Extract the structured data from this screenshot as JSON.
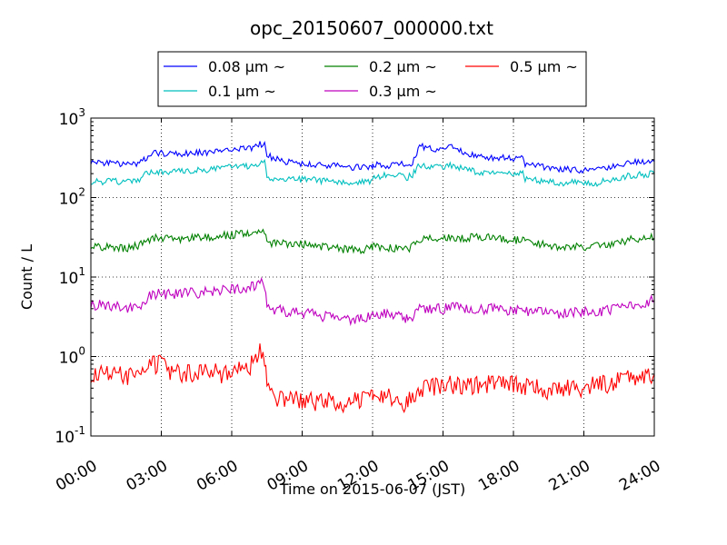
{
  "chart_data": {
    "type": "line",
    "title": "opc_20150607_000000.txt",
    "xlabel": "Time on 2015-06-07 (JST)",
    "ylabel": "Count / L",
    "x_unit": "hours",
    "xlim": [
      0,
      24
    ],
    "ylim": [
      0.1,
      1000
    ],
    "yscale": "log",
    "grid": true,
    "legend_position": "top",
    "x_ticks": [
      {
        "value": 0,
        "label": "00:00"
      },
      {
        "value": 3,
        "label": "03:00"
      },
      {
        "value": 6,
        "label": "06:00"
      },
      {
        "value": 9,
        "label": "09:00"
      },
      {
        "value": 12,
        "label": "12:00"
      },
      {
        "value": 15,
        "label": "15:00"
      },
      {
        "value": 18,
        "label": "18:00"
      },
      {
        "value": 21,
        "label": "21:00"
      },
      {
        "value": 24,
        "label": "24:00"
      }
    ],
    "y_ticks": [
      {
        "value": 0.1,
        "base": "10",
        "exp": "-1"
      },
      {
        "value": 1,
        "base": "10",
        "exp": "0"
      },
      {
        "value": 10,
        "base": "10",
        "exp": "1"
      },
      {
        "value": 100,
        "base": "10",
        "exp": "2"
      },
      {
        "value": 1000,
        "base": "10",
        "exp": "3"
      }
    ],
    "series": [
      {
        "name": "0.08 μm ~",
        "color": "#0000ff",
        "points": [
          [
            0,
            280
          ],
          [
            0.5,
            275
          ],
          [
            1,
            270
          ],
          [
            1.5,
            258
          ],
          [
            2,
            268
          ],
          [
            2.2,
            300
          ],
          [
            2.5,
            310
          ],
          [
            2.7,
            360
          ],
          [
            3,
            362
          ],
          [
            3.5,
            360
          ],
          [
            4,
            355
          ],
          [
            4.5,
            368
          ],
          [
            5,
            370
          ],
          [
            5.5,
            385
          ],
          [
            6,
            392
          ],
          [
            6.5,
            415
          ],
          [
            6.9,
            410
          ],
          [
            7.2,
            480
          ],
          [
            7.4,
            455
          ],
          [
            7.5,
            350
          ],
          [
            7.7,
            320
          ],
          [
            8,
            300
          ],
          [
            8.5,
            275
          ],
          [
            9,
            265
          ],
          [
            9.5,
            258
          ],
          [
            10,
            252
          ],
          [
            10.5,
            250
          ],
          [
            11,
            245
          ],
          [
            11.5,
            236
          ],
          [
            12,
            240
          ],
          [
            12,
            260
          ],
          [
            12.5,
            250
          ],
          [
            13,
            255
          ],
          [
            13.3,
            270
          ],
          [
            13.4,
            248
          ],
          [
            13.5,
            252
          ],
          [
            13.7,
            268
          ],
          [
            14,
            440
          ],
          [
            14.5,
            420
          ],
          [
            15,
            400
          ],
          [
            15.3,
            455
          ],
          [
            15.5,
            400
          ],
          [
            16,
            360
          ],
          [
            16.5,
            345
          ],
          [
            17,
            320
          ],
          [
            17.5,
            320
          ],
          [
            18,
            310
          ],
          [
            18.4,
            315
          ],
          [
            18.5,
            262
          ],
          [
            19,
            250
          ],
          [
            19.5,
            236
          ],
          [
            20,
            225
          ],
          [
            20.5,
            225
          ],
          [
            21,
            222
          ],
          [
            21.5,
            220
          ],
          [
            22,
            235
          ],
          [
            22.5,
            252
          ],
          [
            23,
            280
          ],
          [
            23.5,
            276
          ],
          [
            24,
            285
          ]
        ]
      },
      {
        "name": "0.1 μm ~",
        "color": "#00bfbf",
        "points": [
          [
            0,
            160
          ],
          [
            0.5,
            158
          ],
          [
            1,
            160
          ],
          [
            1.5,
            155
          ],
          [
            2,
            160
          ],
          [
            2.2,
            190
          ],
          [
            2.5,
            205
          ],
          [
            2.7,
            215
          ],
          [
            3,
            210
          ],
          [
            3.5,
            210
          ],
          [
            4,
            215
          ],
          [
            4.5,
            220
          ],
          [
            5,
            225
          ],
          [
            5.5,
            235
          ],
          [
            6,
            240
          ],
          [
            6.5,
            245
          ],
          [
            6.9,
            250
          ],
          [
            7.2,
            280
          ],
          [
            7.4,
            270
          ],
          [
            7.5,
            175
          ],
          [
            7.7,
            165
          ],
          [
            8,
            170
          ],
          [
            8.5,
            168
          ],
          [
            9,
            168
          ],
          [
            9.5,
            168
          ],
          [
            10,
            160
          ],
          [
            10.5,
            160
          ],
          [
            11,
            155
          ],
          [
            11.5,
            160
          ],
          [
            12,
            160
          ],
          [
            12,
            180
          ],
          [
            12.5,
            190
          ],
          [
            13,
            195
          ],
          [
            13.4,
            178
          ],
          [
            13.5,
            180
          ],
          [
            13.7,
            195
          ],
          [
            14,
            255
          ],
          [
            14.5,
            240
          ],
          [
            15,
            240
          ],
          [
            15.3,
            260
          ],
          [
            15.5,
            245
          ],
          [
            16,
            225
          ],
          [
            16.5,
            210
          ],
          [
            17,
            200
          ],
          [
            17.5,
            200
          ],
          [
            18,
            195
          ],
          [
            18.4,
            200
          ],
          [
            18.5,
            170
          ],
          [
            19,
            165
          ],
          [
            19.5,
            160
          ],
          [
            20,
            152
          ],
          [
            20.5,
            155
          ],
          [
            21,
            155
          ],
          [
            21.5,
            150
          ],
          [
            22,
            165
          ],
          [
            22.5,
            175
          ],
          [
            23,
            190
          ],
          [
            23.5,
            195
          ],
          [
            24,
            200
          ]
        ]
      },
      {
        "name": "0.2 μm ~",
        "color": "#008000",
        "points": [
          [
            0,
            24
          ],
          [
            0.5,
            24
          ],
          [
            1,
            24
          ],
          [
            1.5,
            23
          ],
          [
            2,
            25
          ],
          [
            2.2,
            27
          ],
          [
            2.5,
            30
          ],
          [
            2.7,
            31
          ],
          [
            3,
            30
          ],
          [
            3.5,
            30
          ],
          [
            4,
            30
          ],
          [
            4.5,
            31
          ],
          [
            5,
            32
          ],
          [
            5.5,
            33
          ],
          [
            6,
            34
          ],
          [
            6.5,
            35
          ],
          [
            6.9,
            34
          ],
          [
            7.2,
            38
          ],
          [
            7.4,
            36
          ],
          [
            7.5,
            29
          ],
          [
            7.7,
            27
          ],
          [
            8,
            27
          ],
          [
            8.5,
            26
          ],
          [
            9,
            26
          ],
          [
            9.5,
            25
          ],
          [
            10,
            24
          ],
          [
            10.5,
            23
          ],
          [
            11,
            22
          ],
          [
            11.5,
            22
          ],
          [
            12,
            23
          ],
          [
            12,
            24
          ],
          [
            12.5,
            24
          ],
          [
            13,
            23
          ],
          [
            13.4,
            22
          ],
          [
            13.5,
            22
          ],
          [
            13.7,
            24
          ],
          [
            14,
            30
          ],
          [
            14.5,
            30
          ],
          [
            15,
            31
          ],
          [
            15.3,
            32
          ],
          [
            15.5,
            31
          ],
          [
            16,
            31
          ],
          [
            16.5,
            32
          ],
          [
            17,
            32
          ],
          [
            17.5,
            30
          ],
          [
            18,
            29
          ],
          [
            18.4,
            30
          ],
          [
            18.5,
            28
          ],
          [
            19,
            26
          ],
          [
            19.5,
            25
          ],
          [
            20,
            24
          ],
          [
            20.5,
            24
          ],
          [
            21,
            24
          ],
          [
            21.5,
            25
          ],
          [
            22,
            26
          ],
          [
            22.5,
            27
          ],
          [
            23,
            30
          ],
          [
            23.5,
            31
          ],
          [
            24,
            31
          ]
        ]
      },
      {
        "name": "0.3 μm ~",
        "color": "#bf00bf",
        "points": [
          [
            0,
            4.5
          ],
          [
            0.5,
            4.4
          ],
          [
            1,
            4.3
          ],
          [
            1.5,
            4.0
          ],
          [
            2,
            4.2
          ],
          [
            2.2,
            4.8
          ],
          [
            2.5,
            5.8
          ],
          [
            2.7,
            6.2
          ],
          [
            3,
            6.0
          ],
          [
            3.5,
            6.0
          ],
          [
            4,
            6.2
          ],
          [
            4.5,
            6.3
          ],
          [
            5,
            6.5
          ],
          [
            5.5,
            6.8
          ],
          [
            6,
            7.0
          ],
          [
            6.5,
            7.5
          ],
          [
            6.9,
            7.6
          ],
          [
            7.2,
            8.8
          ],
          [
            7.4,
            8.0
          ],
          [
            7.5,
            4.0
          ],
          [
            7.7,
            3.8
          ],
          [
            8,
            3.8
          ],
          [
            8.5,
            3.6
          ],
          [
            9,
            3.5
          ],
          [
            9.5,
            3.4
          ],
          [
            10,
            3.2
          ],
          [
            10.5,
            3.0
          ],
          [
            11,
            2.9
          ],
          [
            11.5,
            2.9
          ],
          [
            12,
            3.2
          ],
          [
            12,
            3.4
          ],
          [
            12.5,
            3.5
          ],
          [
            13,
            3.2
          ],
          [
            13.4,
            3.0
          ],
          [
            13.5,
            3.0
          ],
          [
            13.7,
            3.2
          ],
          [
            14,
            4.0
          ],
          [
            14.5,
            4.0
          ],
          [
            15,
            4.0
          ],
          [
            15.3,
            4.2
          ],
          [
            15.5,
            4.1
          ],
          [
            16,
            4.0
          ],
          [
            16.5,
            4.0
          ],
          [
            17,
            4.0
          ],
          [
            17.5,
            4.0
          ],
          [
            18,
            3.8
          ],
          [
            18.4,
            3.8
          ],
          [
            18.5,
            3.6
          ],
          [
            19,
            3.6
          ],
          [
            19.5,
            3.5
          ],
          [
            20,
            3.5
          ],
          [
            20.5,
            3.6
          ],
          [
            21,
            3.6
          ],
          [
            21.5,
            3.7
          ],
          [
            22,
            3.8
          ],
          [
            22.5,
            4.0
          ],
          [
            23,
            4.5
          ],
          [
            23.5,
            4.8
          ],
          [
            24,
            5.0
          ]
        ]
      },
      {
        "name": "0.5 μm ~",
        "color": "#ff0000",
        "points": [
          [
            0,
            0.6
          ],
          [
            0.5,
            0.6
          ],
          [
            1,
            0.6
          ],
          [
            1.5,
            0.55
          ],
          [
            2,
            0.55
          ],
          [
            2.2,
            0.6
          ],
          [
            2.5,
            0.75
          ],
          [
            2.7,
            0.8
          ],
          [
            3,
            0.8
          ],
          [
            3.5,
            0.6
          ],
          [
            4,
            0.6
          ],
          [
            4.5,
            0.6
          ],
          [
            5,
            0.65
          ],
          [
            5.5,
            0.6
          ],
          [
            6,
            0.65
          ],
          [
            6.5,
            0.7
          ],
          [
            6.9,
            0.8
          ],
          [
            7.2,
            1.2
          ],
          [
            7.4,
            1.0
          ],
          [
            7.5,
            0.5
          ],
          [
            7.7,
            0.35
          ],
          [
            8,
            0.3
          ],
          [
            8.5,
            0.3
          ],
          [
            9,
            0.28
          ],
          [
            9.5,
            0.27
          ],
          [
            10,
            0.28
          ],
          [
            10.5,
            0.27
          ],
          [
            11,
            0.25
          ],
          [
            11.5,
            0.3
          ],
          [
            12,
            0.3
          ],
          [
            12,
            0.35
          ],
          [
            12.5,
            0.33
          ],
          [
            13,
            0.3
          ],
          [
            13.4,
            0.22
          ],
          [
            13.5,
            0.28
          ],
          [
            13.7,
            0.3
          ],
          [
            14,
            0.4
          ],
          [
            14.5,
            0.42
          ],
          [
            15,
            0.4
          ],
          [
            15.3,
            0.45
          ],
          [
            15.5,
            0.42
          ],
          [
            16,
            0.42
          ],
          [
            16.5,
            0.45
          ],
          [
            17,
            0.45
          ],
          [
            17.5,
            0.45
          ],
          [
            18,
            0.45
          ],
          [
            18.4,
            0.42
          ],
          [
            18.5,
            0.42
          ],
          [
            19,
            0.4
          ],
          [
            19.5,
            0.38
          ],
          [
            20,
            0.38
          ],
          [
            20.5,
            0.4
          ],
          [
            21,
            0.4
          ],
          [
            21.5,
            0.45
          ],
          [
            22,
            0.45
          ],
          [
            22.5,
            0.5
          ],
          [
            23,
            0.55
          ],
          [
            23.5,
            0.55
          ],
          [
            24,
            0.6
          ]
        ]
      }
    ]
  }
}
